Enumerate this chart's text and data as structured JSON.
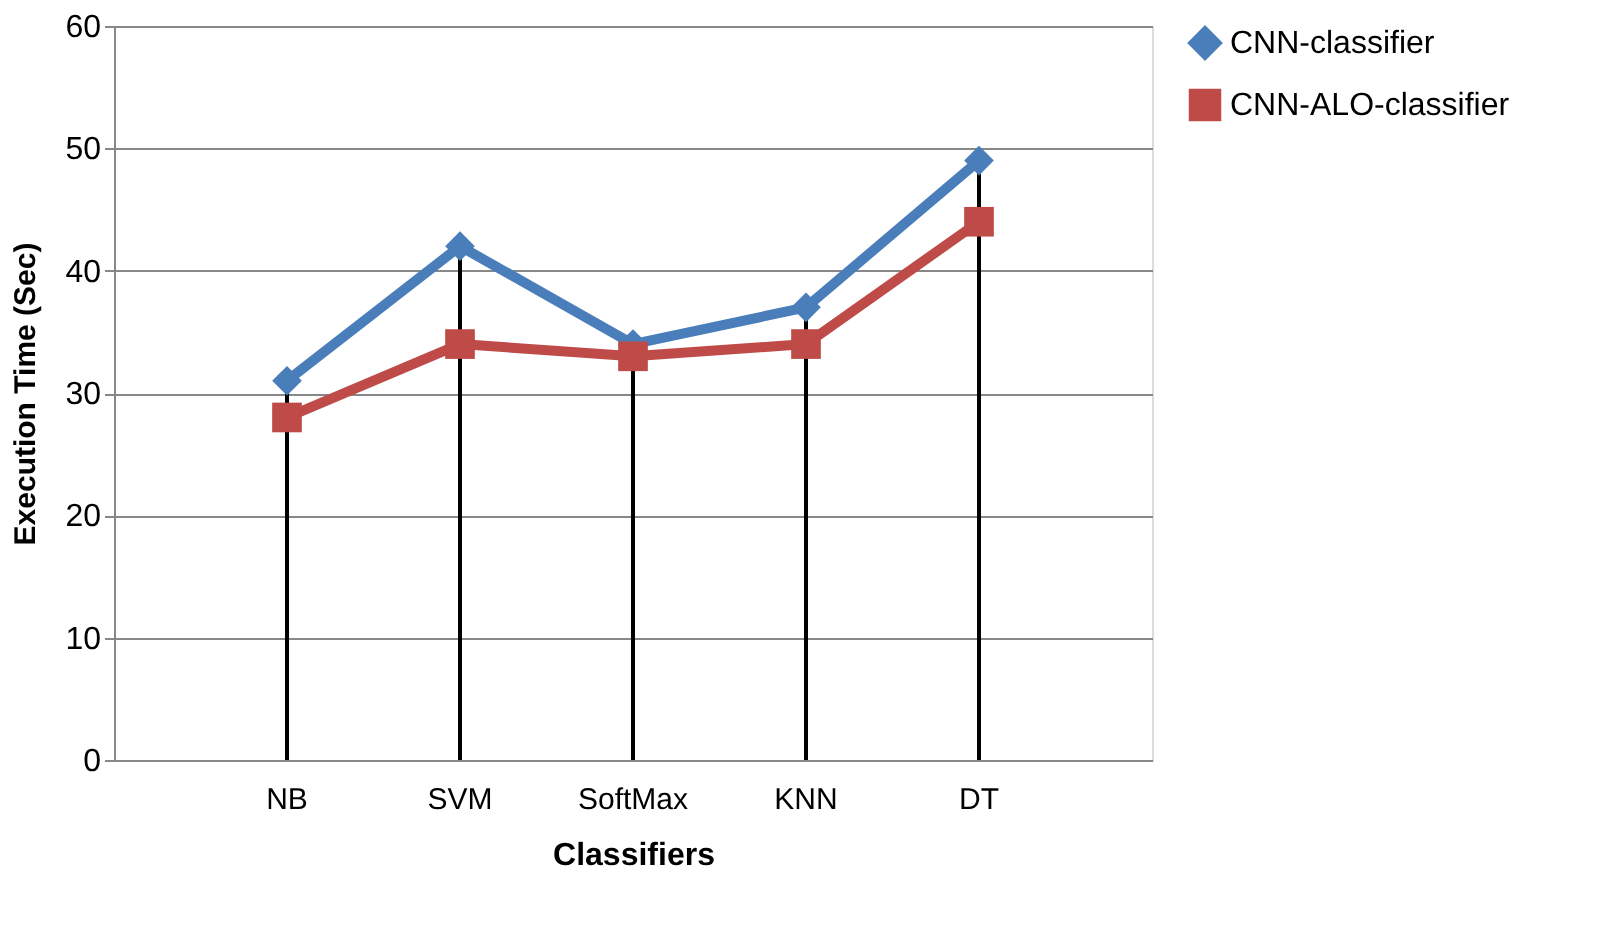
{
  "chart_data": {
    "type": "line",
    "xlabel": "Classifiers",
    "ylabel": "Execution Time (Sec)",
    "categories": [
      "NB",
      "SVM",
      "SoftMax",
      "KNN",
      "DT"
    ],
    "series": [
      {
        "name": "CNN-classifier",
        "color": "#4a7ebb",
        "marker": "diamond",
        "values": [
          31,
          42,
          34,
          37,
          49
        ],
        "errors": [
          [
            0,
            31
          ],
          [
            0,
            42
          ],
          [
            0,
            34
          ],
          [
            0,
            37
          ],
          [
            0,
            49
          ]
        ]
      },
      {
        "name": "CNN-ALO-classifier",
        "color": "#be4b48",
        "marker": "square",
        "values": [
          28,
          34,
          33,
          34,
          44
        ]
      }
    ],
    "ylim": [
      0,
      60
    ],
    "yticks": [
      0,
      10,
      20,
      30,
      40,
      50,
      60
    ],
    "grid": "y",
    "legend": "right",
    "line_style": "solid"
  }
}
